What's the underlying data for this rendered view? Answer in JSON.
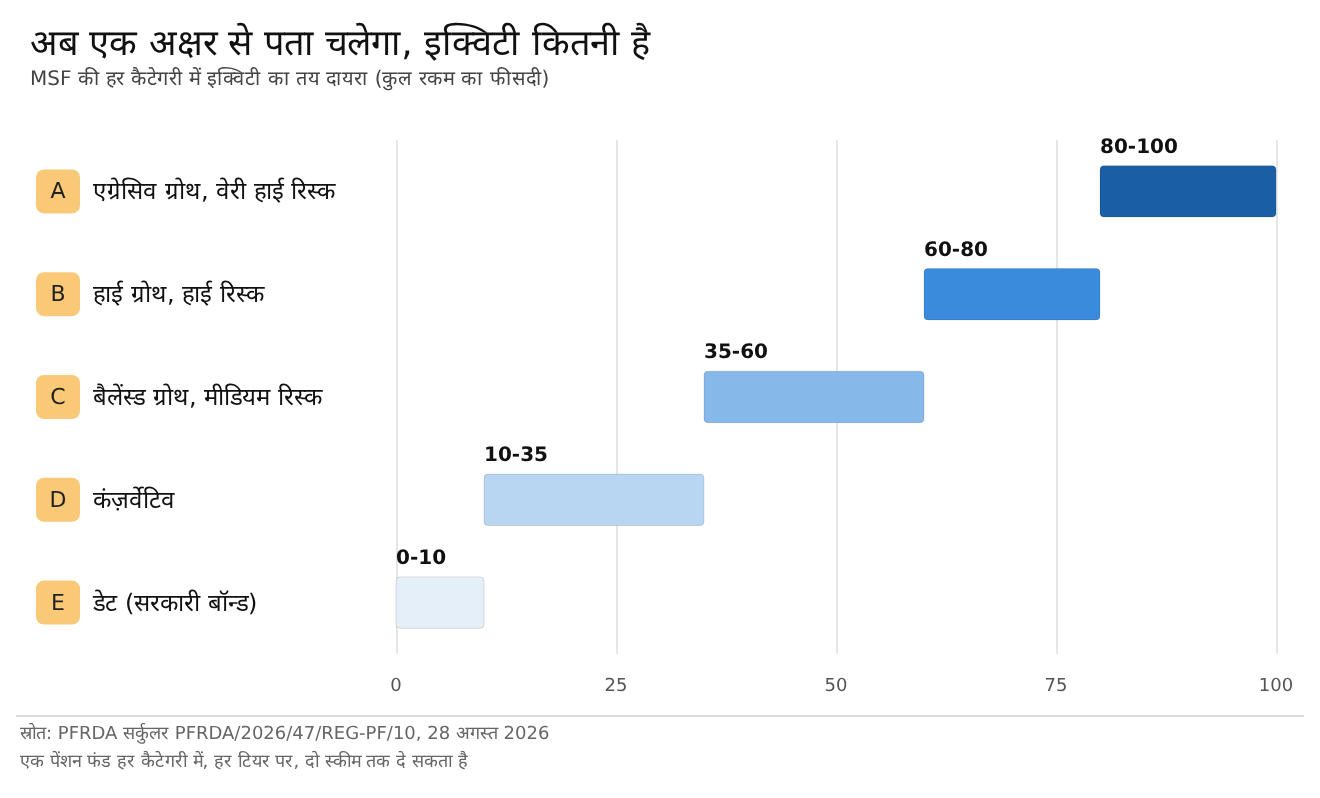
{
  "chart_data": {
    "type": "bar",
    "orientation": "horizontal",
    "title": "अब एक अक्षर से पता चलेगा, इक्विटी कितनी है",
    "subtitle": "MSF की हर कैटेगरी में इक्विटी का तय दायरा (कुल रकम का फीसदी)",
    "categories": [
      "एग्रेसिव ग्रोथ, वेरी हाई रिस्क",
      "हाई ग्रोथ, हाई रिस्क",
      "बैलेंस्ड ग्रोथ, मीडियम रिस्क",
      "कंज़र्वेटिव",
      "डेट (सरकारी बॉन्ड)"
    ],
    "base": [
      80,
      60,
      35,
      10,
      0
    ],
    "values": [
      20,
      20,
      25,
      25,
      10
    ],
    "colors": [
      "#1a5fa5",
      "#3a8bdc",
      "#86b8ea",
      "#b8d6f2",
      "#e4eff9"
    ],
    "value_labels": [
      "80-100",
      "60-80",
      "35-60",
      "10-35",
      "0-10"
    ],
    "xlim": [
      0,
      100
    ],
    "xticks": [
      0,
      25,
      50,
      75,
      100
    ],
    "grid": "x",
    "annotations": [
      "A",
      "B",
      "C",
      "D",
      "E",
      "स्रोत: PFRDA सर्कुलर PFRDA/2026/47/REG-PF/10, 28 अगस्त 2026",
      "एक पेंशन फंड हर कैटेगरी में, हर टियर पर, दो स्कीम तक दे सकता है"
    ]
  }
}
